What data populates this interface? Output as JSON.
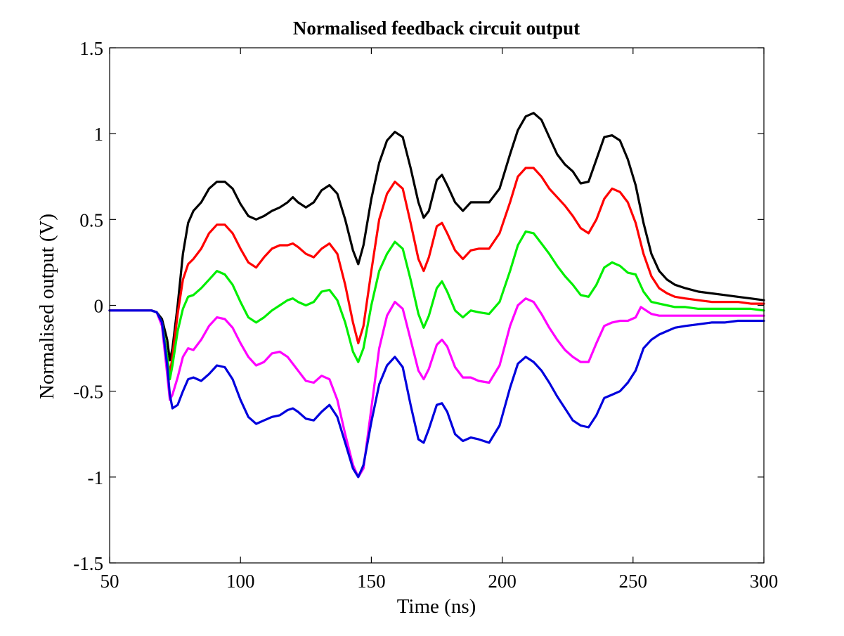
{
  "chart_data": {
    "type": "line",
    "title": "Normalised feedback circuit output",
    "xlabel": "Time (ns)",
    "ylabel": "Normalised output (V)",
    "xlim": [
      50,
      300
    ],
    "ylim": [
      -1.5,
      1.5
    ],
    "xticks": [
      50,
      100,
      150,
      200,
      250,
      300
    ],
    "xtick_labels": [
      "50",
      "100",
      "150",
      "200",
      "250",
      "300"
    ],
    "yticks": [
      -1.5,
      -1,
      -0.5,
      0,
      0.5,
      1,
      1.5
    ],
    "ytick_labels": [
      "-1.5",
      "-1",
      "-0.5",
      "0",
      "0.5",
      "1",
      "1.5"
    ],
    "grid": false,
    "legend": "none",
    "series": [
      {
        "color": "#000000",
        "x": [
          50,
          60,
          66,
          68,
          70,
          72,
          73,
          74,
          76,
          78,
          80,
          82,
          85,
          88,
          91,
          94,
          97,
          100,
          103,
          106,
          109,
          112,
          115,
          118,
          120,
          122,
          125,
          128,
          131,
          134,
          137,
          140,
          143,
          145,
          147,
          150,
          153,
          156,
          159,
          162,
          165,
          168,
          170,
          172,
          175,
          177,
          179,
          182,
          185,
          188,
          191,
          195,
          199,
          203,
          206,
          209,
          212,
          215,
          218,
          221,
          224,
          227,
          230,
          233,
          236,
          239,
          242,
          245,
          248,
          251,
          254,
          257,
          260,
          263,
          266,
          270,
          275,
          280,
          285,
          290,
          295,
          300
        ],
        "values": [
          -0.03,
          -0.03,
          -0.03,
          -0.04,
          -0.08,
          -0.2,
          -0.32,
          -0.25,
          0.0,
          0.3,
          0.48,
          0.55,
          0.6,
          0.68,
          0.72,
          0.72,
          0.68,
          0.59,
          0.52,
          0.5,
          0.52,
          0.55,
          0.57,
          0.6,
          0.63,
          0.6,
          0.57,
          0.6,
          0.67,
          0.7,
          0.65,
          0.5,
          0.32,
          0.24,
          0.35,
          0.62,
          0.83,
          0.96,
          1.01,
          0.98,
          0.8,
          0.6,
          0.51,
          0.55,
          0.73,
          0.76,
          0.7,
          0.6,
          0.55,
          0.6,
          0.6,
          0.6,
          0.68,
          0.88,
          1.02,
          1.1,
          1.12,
          1.08,
          0.98,
          0.88,
          0.82,
          0.78,
          0.71,
          0.72,
          0.85,
          0.98,
          0.99,
          0.96,
          0.85,
          0.7,
          0.48,
          0.3,
          0.2,
          0.15,
          0.12,
          0.1,
          0.08,
          0.07,
          0.06,
          0.05,
          0.04,
          0.03
        ]
      },
      {
        "color": "#ff0000",
        "x": [
          50,
          60,
          66,
          68,
          70,
          72,
          73,
          74,
          76,
          78,
          80,
          82,
          85,
          88,
          91,
          94,
          97,
          100,
          103,
          106,
          109,
          112,
          115,
          118,
          120,
          122,
          125,
          128,
          131,
          134,
          137,
          140,
          143,
          145,
          147,
          150,
          153,
          156,
          159,
          162,
          165,
          168,
          170,
          172,
          175,
          177,
          179,
          182,
          185,
          188,
          191,
          195,
          199,
          203,
          206,
          209,
          212,
          215,
          218,
          221,
          224,
          227,
          230,
          233,
          236,
          239,
          242,
          245,
          248,
          251,
          254,
          257,
          260,
          263,
          266,
          270,
          275,
          280,
          285,
          290,
          295,
          300
        ],
        "values": [
          -0.03,
          -0.03,
          -0.03,
          -0.04,
          -0.1,
          -0.3,
          -0.4,
          -0.3,
          -0.05,
          0.15,
          0.24,
          0.27,
          0.33,
          0.42,
          0.47,
          0.47,
          0.42,
          0.33,
          0.25,
          0.22,
          0.28,
          0.33,
          0.35,
          0.35,
          0.36,
          0.34,
          0.3,
          0.28,
          0.33,
          0.36,
          0.3,
          0.12,
          -0.1,
          -0.22,
          -0.12,
          0.2,
          0.5,
          0.65,
          0.72,
          0.68,
          0.48,
          0.27,
          0.2,
          0.28,
          0.46,
          0.48,
          0.42,
          0.32,
          0.27,
          0.32,
          0.33,
          0.33,
          0.42,
          0.6,
          0.75,
          0.8,
          0.8,
          0.75,
          0.68,
          0.63,
          0.58,
          0.52,
          0.45,
          0.42,
          0.5,
          0.62,
          0.68,
          0.66,
          0.6,
          0.48,
          0.3,
          0.17,
          0.1,
          0.07,
          0.05,
          0.04,
          0.03,
          0.02,
          0.02,
          0.02,
          0.01,
          0.01
        ]
      },
      {
        "color": "#00ee00",
        "x": [
          50,
          60,
          66,
          68,
          70,
          72,
          73,
          74,
          76,
          78,
          80,
          82,
          85,
          88,
          91,
          94,
          97,
          100,
          103,
          106,
          109,
          112,
          115,
          118,
          120,
          122,
          125,
          128,
          131,
          134,
          137,
          140,
          143,
          145,
          147,
          150,
          153,
          156,
          159,
          162,
          165,
          168,
          170,
          172,
          175,
          177,
          179,
          182,
          185,
          188,
          191,
          195,
          199,
          203,
          206,
          209,
          212,
          215,
          218,
          221,
          224,
          227,
          230,
          233,
          236,
          239,
          242,
          245,
          248,
          251,
          254,
          257,
          260,
          263,
          266,
          270,
          275,
          280,
          285,
          290,
          295,
          300
        ],
        "values": [
          -0.03,
          -0.03,
          -0.03,
          -0.04,
          -0.1,
          -0.3,
          -0.43,
          -0.35,
          -0.15,
          -0.02,
          0.05,
          0.06,
          0.1,
          0.15,
          0.2,
          0.18,
          0.12,
          0.02,
          -0.07,
          -0.1,
          -0.07,
          -0.03,
          0.0,
          0.03,
          0.04,
          0.02,
          0.0,
          0.02,
          0.08,
          0.09,
          0.03,
          -0.1,
          -0.27,
          -0.33,
          -0.25,
          0.0,
          0.2,
          0.3,
          0.37,
          0.33,
          0.15,
          -0.05,
          -0.13,
          -0.06,
          0.1,
          0.14,
          0.08,
          -0.03,
          -0.07,
          -0.03,
          -0.04,
          -0.05,
          0.02,
          0.2,
          0.35,
          0.43,
          0.42,
          0.36,
          0.3,
          0.23,
          0.17,
          0.12,
          0.06,
          0.05,
          0.12,
          0.22,
          0.25,
          0.23,
          0.19,
          0.18,
          0.08,
          0.02,
          0.01,
          0.0,
          -0.01,
          -0.01,
          -0.02,
          -0.02,
          -0.02,
          -0.02,
          -0.02,
          -0.03
        ]
      },
      {
        "color": "#ff00ff",
        "x": [
          50,
          60,
          66,
          68,
          70,
          72,
          73,
          74,
          76,
          78,
          80,
          82,
          85,
          88,
          91,
          94,
          97,
          100,
          103,
          106,
          109,
          112,
          115,
          118,
          120,
          122,
          125,
          128,
          131,
          134,
          137,
          140,
          143,
          145,
          147,
          150,
          153,
          156,
          159,
          162,
          165,
          168,
          170,
          172,
          175,
          177,
          179,
          182,
          185,
          188,
          191,
          195,
          199,
          203,
          206,
          209,
          212,
          215,
          218,
          221,
          224,
          227,
          230,
          233,
          236,
          239,
          242,
          245,
          248,
          251,
          253,
          255,
          257,
          260,
          263,
          266,
          270,
          275,
          280,
          285,
          290,
          295,
          300
        ],
        "values": [
          -0.03,
          -0.03,
          -0.03,
          -0.04,
          -0.12,
          -0.4,
          -0.55,
          -0.52,
          -0.42,
          -0.3,
          -0.25,
          -0.26,
          -0.2,
          -0.12,
          -0.07,
          -0.08,
          -0.13,
          -0.22,
          -0.3,
          -0.35,
          -0.33,
          -0.28,
          -0.27,
          -0.3,
          -0.34,
          -0.38,
          -0.44,
          -0.45,
          -0.41,
          -0.43,
          -0.55,
          -0.75,
          -0.93,
          -1.0,
          -0.95,
          -0.6,
          -0.25,
          -0.06,
          0.02,
          -0.02,
          -0.2,
          -0.38,
          -0.43,
          -0.37,
          -0.23,
          -0.2,
          -0.24,
          -0.36,
          -0.42,
          -0.42,
          -0.44,
          -0.45,
          -0.35,
          -0.12,
          0.0,
          0.04,
          0.02,
          -0.05,
          -0.13,
          -0.2,
          -0.26,
          -0.3,
          -0.33,
          -0.33,
          -0.22,
          -0.12,
          -0.1,
          -0.09,
          -0.09,
          -0.07,
          -0.01,
          -0.03,
          -0.05,
          -0.06,
          -0.06,
          -0.06,
          -0.06,
          -0.06,
          -0.06,
          -0.06,
          -0.06,
          -0.06,
          -0.06
        ]
      },
      {
        "color": "#0000dd",
        "x": [
          50,
          60,
          66,
          68,
          70,
          72,
          73,
          74,
          76,
          78,
          80,
          82,
          85,
          88,
          91,
          94,
          97,
          100,
          103,
          106,
          109,
          112,
          115,
          118,
          120,
          122,
          125,
          128,
          131,
          134,
          137,
          140,
          143,
          145,
          147,
          150,
          153,
          156,
          159,
          162,
          165,
          168,
          170,
          172,
          175,
          177,
          179,
          182,
          185,
          188,
          191,
          195,
          199,
          203,
          206,
          209,
          212,
          215,
          218,
          221,
          224,
          227,
          230,
          233,
          236,
          239,
          242,
          245,
          248,
          251,
          254,
          257,
          260,
          263,
          266,
          270,
          275,
          280,
          285,
          290,
          295,
          300
        ],
        "values": [
          -0.03,
          -0.03,
          -0.03,
          -0.04,
          -0.1,
          -0.35,
          -0.52,
          -0.6,
          -0.58,
          -0.5,
          -0.43,
          -0.42,
          -0.44,
          -0.4,
          -0.35,
          -0.36,
          -0.43,
          -0.55,
          -0.65,
          -0.69,
          -0.67,
          -0.65,
          -0.64,
          -0.61,
          -0.6,
          -0.62,
          -0.66,
          -0.67,
          -0.62,
          -0.58,
          -0.65,
          -0.8,
          -0.95,
          -1.0,
          -0.93,
          -0.68,
          -0.46,
          -0.35,
          -0.3,
          -0.36,
          -0.58,
          -0.78,
          -0.8,
          -0.72,
          -0.58,
          -0.57,
          -0.62,
          -0.75,
          -0.79,
          -0.77,
          -0.78,
          -0.8,
          -0.7,
          -0.48,
          -0.34,
          -0.3,
          -0.33,
          -0.38,
          -0.45,
          -0.53,
          -0.6,
          -0.67,
          -0.7,
          -0.71,
          -0.64,
          -0.54,
          -0.52,
          -0.5,
          -0.45,
          -0.38,
          -0.25,
          -0.2,
          -0.17,
          -0.15,
          -0.13,
          -0.12,
          -0.11,
          -0.1,
          -0.1,
          -0.09,
          -0.09,
          -0.09
        ]
      }
    ]
  }
}
